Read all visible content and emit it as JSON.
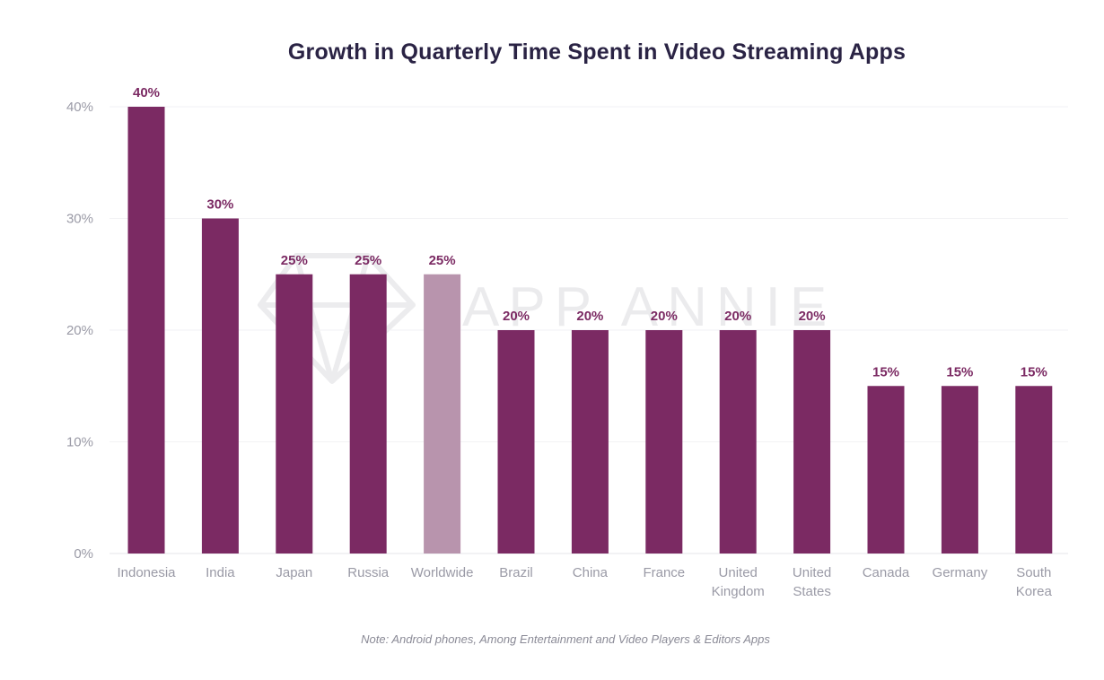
{
  "chart_data": {
    "type": "bar",
    "title": "Growth in Quarterly Time Spent in Video Streaming Apps",
    "categories": [
      [
        "Indonesia"
      ],
      [
        "India"
      ],
      [
        "Japan"
      ],
      [
        "Russia"
      ],
      [
        "Worldwide"
      ],
      [
        "Brazil"
      ],
      [
        "China"
      ],
      [
        "France"
      ],
      [
        "United",
        "Kingdom"
      ],
      [
        "United",
        "States"
      ],
      [
        "Canada"
      ],
      [
        "Germany"
      ],
      [
        "South",
        "Korea"
      ]
    ],
    "values": [
      40,
      30,
      25,
      25,
      25,
      20,
      20,
      20,
      20,
      20,
      15,
      15,
      15
    ],
    "value_labels": [
      "40%",
      "30%",
      "25%",
      "25%",
      "25%",
      "20%",
      "20%",
      "20%",
      "20%",
      "20%",
      "15%",
      "15%",
      "15%"
    ],
    "highlighted_category": "Worldwide",
    "y_ticks": [
      0,
      10,
      20,
      30,
      40
    ],
    "y_tick_labels": [
      "0%",
      "10%",
      "20%",
      "30%",
      "40%"
    ],
    "ylim": [
      0,
      40
    ],
    "grid": true,
    "colors": {
      "bar": "#7b2a63",
      "highlight_bar": "#b894ad",
      "value_label": "#7b2a63"
    },
    "watermark": "APP ANNIE",
    "note": "Note: Android phones, Among Entertainment and Video Players & Editors Apps"
  }
}
